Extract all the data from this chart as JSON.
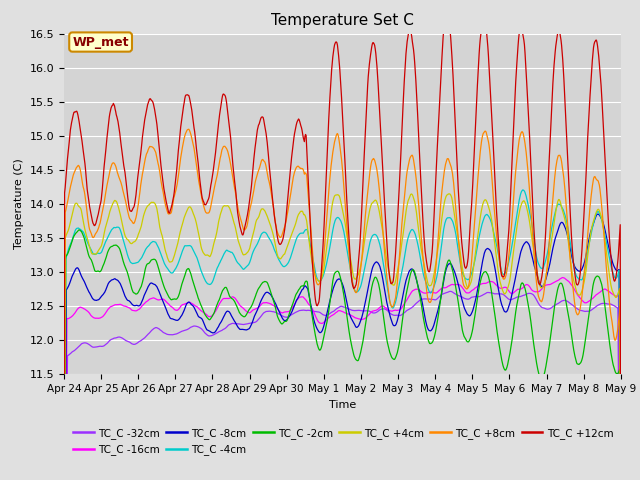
{
  "title": "Temperature Set C",
  "xlabel": "Time",
  "ylabel": "Temperature (C)",
  "ylim": [
    11.5,
    16.5
  ],
  "background_color": "#e0e0e0",
  "plot_bg_color": "#d4d4d4",
  "grid_color": "#ffffff",
  "legend_box_color": "#ffffcc",
  "legend_box_edge": "#cc8800",
  "wp_met_label": "WP_met",
  "xtick_labels": [
    "Apr 24",
    "Apr 25",
    "Apr 26",
    "Apr 27",
    "Apr 28",
    "Apr 29",
    "Apr 30",
    "May 1",
    "May 2",
    "May 3",
    "May 4",
    "May 5",
    "May 6",
    "May 7",
    "May 8",
    "May 9"
  ],
  "n_points": 960,
  "figsize": [
    6.4,
    4.8
  ],
  "dpi": 100
}
